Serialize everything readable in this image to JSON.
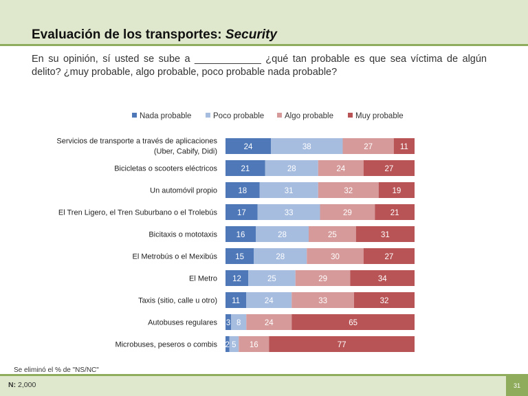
{
  "slide": {
    "title_main": "Evaluación de los transportes: ",
    "title_italic": "Security",
    "question": "En su opinión, sí usted se sube a ____________ ¿qué tan probable es que sea víctima de algún delito? ¿muy probable, algo probable, poco probable nada probable?",
    "footnote": "Se eliminó el % de \"NS/NC\"",
    "n_label": "N:",
    "n_value": "2,000",
    "page_number": "31"
  },
  "colors": {
    "nada": "#4f78b8",
    "poco": "#a6bde0",
    "algo": "#d79a9a",
    "muy": "#b85456"
  },
  "chart_data": {
    "type": "bar",
    "orientation": "horizontal",
    "stacked": true,
    "legend_position": "top",
    "categories": [
      [
        "Servicios de transporte a través de aplicaciones",
        "(Uber, Cabify, Didi)"
      ],
      [
        "Bicicletas o scooters eléctricos"
      ],
      [
        "Un automóvil propio"
      ],
      [
        "El Tren Ligero, el Tren Suburbano o el Trolebús"
      ],
      [
        "Bicitaxis o mototaxis"
      ],
      [
        "El Metrobús o el Mexibús"
      ],
      [
        "El Metro"
      ],
      [
        "Taxis (sitio, calle u otro)"
      ],
      [
        "Autobuses regulares"
      ],
      [
        "Microbuses, peseros o combis"
      ]
    ],
    "series": [
      {
        "name": "Nada probable",
        "color_key": "nada",
        "values": [
          24,
          21,
          18,
          17,
          16,
          15,
          12,
          11,
          3,
          2
        ]
      },
      {
        "name": "Poco probable",
        "color_key": "poco",
        "values": [
          38,
          28,
          31,
          33,
          28,
          28,
          25,
          24,
          8,
          5
        ]
      },
      {
        "name": "Algo probable",
        "color_key": "algo",
        "values": [
          27,
          24,
          32,
          29,
          25,
          30,
          29,
          33,
          24,
          16
        ]
      },
      {
        "name": "Muy probable",
        "color_key": "muy",
        "values": [
          11,
          27,
          19,
          21,
          31,
          27,
          34,
          32,
          65,
          77
        ]
      }
    ]
  }
}
